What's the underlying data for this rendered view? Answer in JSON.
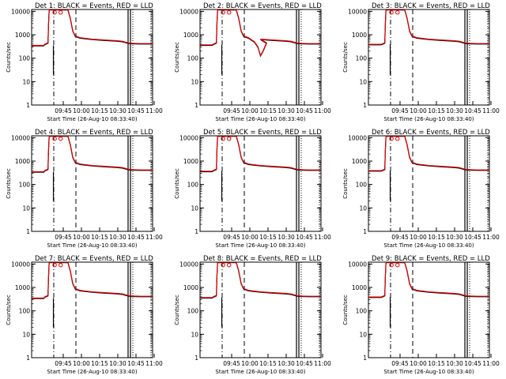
{
  "chart_data": [
    {
      "type": "line",
      "title": "Det 1: BLACK = Events, RED = LLD",
      "xlabel": "Start Time (26-Aug-10 08:33:40)",
      "ylabel": "Counts/sec",
      "ylim": [
        1,
        12000
      ],
      "yscale": "log",
      "xticks": [
        "09:45",
        "10:00",
        "10:15",
        "10:30",
        "10:45",
        "11:00"
      ],
      "yticks": [
        "1",
        "10",
        "100",
        "1000",
        "10000"
      ],
      "series": [
        {
          "name": "Events",
          "color": "#000000"
        },
        {
          "name": "LLD",
          "color": "#e00000"
        }
      ]
    },
    {
      "type": "line",
      "title": "Det 2: BLACK = Events, RED = LLD",
      "xlabel": "Start Time (26-Aug-10 08:33:40)",
      "ylabel": "Counts/sec",
      "ylim": [
        1,
        12000
      ],
      "yscale": "log",
      "xticks": [
        "09:45",
        "10:00",
        "10:15",
        "10:30",
        "10:45",
        "11:00"
      ],
      "yticks": [
        "1",
        "10",
        "100",
        "1000",
        "10000"
      ],
      "series": [
        {
          "name": "Events",
          "color": "#000000"
        },
        {
          "name": "LLD",
          "color": "#e00000"
        }
      ]
    },
    {
      "type": "line",
      "title": "Det 3: BLACK = Events, RED = LLD",
      "xlabel": "Start Time (26-Aug-10 08:33:40)",
      "ylabel": "Counts/sec",
      "ylim": [
        1,
        12000
      ],
      "yscale": "log",
      "xticks": [
        "09:45",
        "10:00",
        "10:15",
        "10:30",
        "10:45",
        "11:00"
      ],
      "yticks": [
        "1",
        "10",
        "100",
        "1000",
        "10000"
      ],
      "series": [
        {
          "name": "Events",
          "color": "#000000"
        },
        {
          "name": "LLD",
          "color": "#e00000"
        }
      ]
    },
    {
      "type": "line",
      "title": "Det 4: BLACK = Events, RED = LLD",
      "xlabel": "Start Time (26-Aug-10 08:33:40)",
      "ylabel": "Counts/sec",
      "ylim": [
        1,
        12000
      ],
      "yscale": "log",
      "xticks": [
        "09:45",
        "10:00",
        "10:15",
        "10:30",
        "10:45",
        "11:00"
      ],
      "yticks": [
        "1",
        "10",
        "100",
        "1000",
        "10000"
      ],
      "series": [
        {
          "name": "Events",
          "color": "#000000"
        },
        {
          "name": "LLD",
          "color": "#e00000"
        }
      ]
    },
    {
      "type": "line",
      "title": "Det 5: BLACK = Events, RED = LLD",
      "xlabel": "Start Time (26-Aug-10 08:33:40)",
      "ylabel": "Counts/sec",
      "ylim": [
        1,
        12000
      ],
      "yscale": "log",
      "xticks": [
        "09:45",
        "10:00",
        "10:15",
        "10:30",
        "10:45",
        "11:00"
      ],
      "yticks": [
        "1",
        "10",
        "100",
        "1000",
        "10000"
      ],
      "series": [
        {
          "name": "Events",
          "color": "#000000"
        },
        {
          "name": "LLD",
          "color": "#e00000"
        }
      ]
    },
    {
      "type": "line",
      "title": "Det 6: BLACK = Events, RED = LLD",
      "xlabel": "Start Time (26-Aug-10 08:33:40)",
      "ylabel": "Counts/sec",
      "ylim": [
        1,
        12000
      ],
      "yscale": "log",
      "xticks": [
        "09:45",
        "10:00",
        "10:15",
        "10:30",
        "10:45",
        "11:00"
      ],
      "yticks": [
        "1",
        "10",
        "100",
        "1000",
        "10000"
      ],
      "series": [
        {
          "name": "Events",
          "color": "#000000"
        },
        {
          "name": "LLD",
          "color": "#e00000"
        }
      ]
    },
    {
      "type": "line",
      "title": "Det 7: BLACK = Events, RED = LLD",
      "xlabel": "Start Time (26-Aug-10 08:33:40)",
      "ylabel": "Counts/sec",
      "ylim": [
        1,
        12000
      ],
      "yscale": "log",
      "xticks": [
        "09:45",
        "10:00",
        "10:15",
        "10:30",
        "10:45",
        "11:00"
      ],
      "yticks": [
        "1",
        "10",
        "100",
        "1000",
        "10000"
      ],
      "series": [
        {
          "name": "Events",
          "color": "#000000"
        },
        {
          "name": "LLD",
          "color": "#e00000"
        }
      ]
    },
    {
      "type": "line",
      "title": "Det 8: BLACK = Events, RED = LLD",
      "xlabel": "Start Time (26-Aug-10 08:33:40)",
      "ylabel": "Counts/sec",
      "ylim": [
        1,
        12000
      ],
      "yscale": "log",
      "xticks": [
        "09:45",
        "10:00",
        "10:15",
        "10:30",
        "10:45",
        "11:00"
      ],
      "yticks": [
        "1",
        "10",
        "100",
        "1000",
        "10000"
      ],
      "series": [
        {
          "name": "Events",
          "color": "#000000"
        },
        {
          "name": "LLD",
          "color": "#e00000"
        }
      ]
    },
    {
      "type": "line",
      "title": "Det 9: BLACK = Events, RED = LLD",
      "xlabel": "Start Time (26-Aug-10 08:33:40)",
      "ylabel": "Counts/sec",
      "ylim": [
        1,
        12000
      ],
      "yscale": "log",
      "xticks": [
        "09:45",
        "10:00",
        "10:15",
        "10:30",
        "10:45",
        "11:00"
      ],
      "yticks": [
        "1",
        "10",
        "100",
        "1000",
        "10000"
      ],
      "series": [
        {
          "name": "Events",
          "color": "#000000"
        },
        {
          "name": "LLD",
          "color": "#e00000"
        }
      ]
    }
  ]
}
